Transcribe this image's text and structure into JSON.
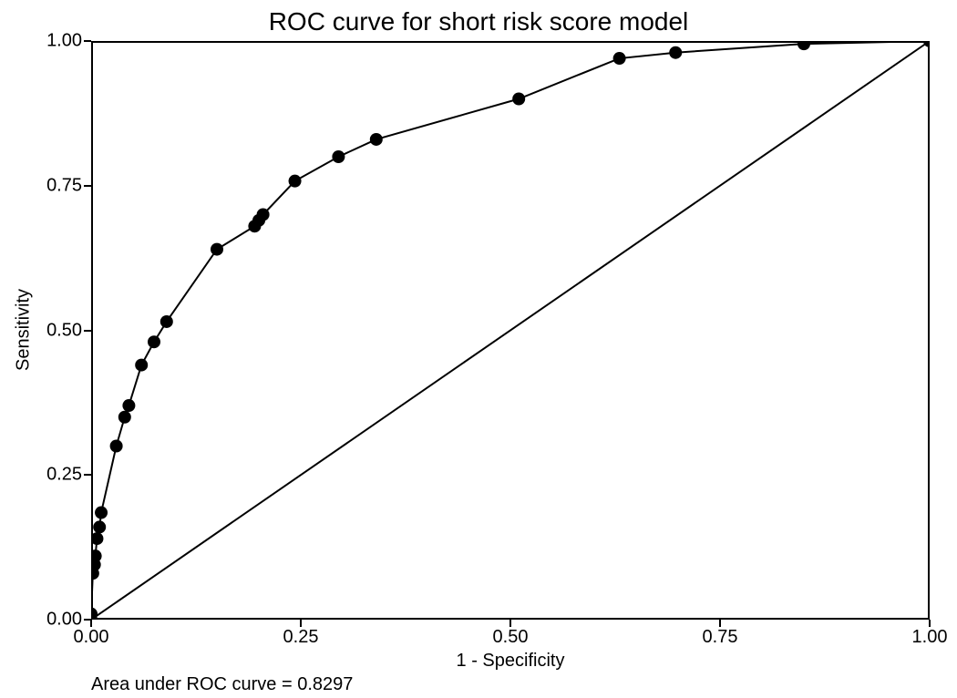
{
  "chart": {
    "type": "line",
    "title": "ROC curve for short risk score model",
    "xlabel": "1 - Specificity",
    "ylabel": "Sensitivity",
    "caption": "Area under ROC curve = 0.8297",
    "xlim": [
      0.0,
      1.0
    ],
    "ylim": [
      0.0,
      1.0
    ],
    "xticks": [
      0.0,
      0.25,
      0.5,
      0.75,
      1.0
    ],
    "yticks": [
      0.0,
      0.25,
      0.5,
      0.75,
      1.0
    ],
    "xtick_labels": [
      "0.00",
      "0.25",
      "0.50",
      "0.75",
      "1.00"
    ],
    "ytick_labels": [
      "0.00",
      "0.25",
      "0.50",
      "0.75",
      "1.00"
    ],
    "tick_length": 8,
    "axis_line_width": 2,
    "background_color": "#ffffff",
    "border_color": "#000000",
    "line_color": "#000000",
    "line_width": 2,
    "marker_color": "#000000",
    "marker_radius": 7,
    "reference_line_color": "#000000",
    "reference_line_width": 2,
    "title_fontsize": 28,
    "label_fontsize": 20,
    "tick_fontsize": 20,
    "roc_points": [
      {
        "x": 0.0,
        "y": 0.0
      },
      {
        "x": 0.0,
        "y": 0.01
      },
      {
        "x": 0.002,
        "y": 0.08
      },
      {
        "x": 0.004,
        "y": 0.095
      },
      {
        "x": 0.005,
        "y": 0.11
      },
      {
        "x": 0.007,
        "y": 0.14
      },
      {
        "x": 0.01,
        "y": 0.16
      },
      {
        "x": 0.012,
        "y": 0.185
      },
      {
        "x": 0.03,
        "y": 0.3
      },
      {
        "x": 0.04,
        "y": 0.35
      },
      {
        "x": 0.045,
        "y": 0.37
      },
      {
        "x": 0.06,
        "y": 0.44
      },
      {
        "x": 0.075,
        "y": 0.48
      },
      {
        "x": 0.09,
        "y": 0.515
      },
      {
        "x": 0.15,
        "y": 0.64
      },
      {
        "x": 0.195,
        "y": 0.68
      },
      {
        "x": 0.2,
        "y": 0.69
      },
      {
        "x": 0.205,
        "y": 0.7
      },
      {
        "x": 0.243,
        "y": 0.758
      },
      {
        "x": 0.295,
        "y": 0.8
      },
      {
        "x": 0.34,
        "y": 0.83
      },
      {
        "x": 0.51,
        "y": 0.9
      },
      {
        "x": 0.63,
        "y": 0.97
      },
      {
        "x": 0.697,
        "y": 0.98
      },
      {
        "x": 0.85,
        "y": 0.995
      },
      {
        "x": 1.0,
        "y": 1.0
      }
    ],
    "reference_line": [
      {
        "x": 0.0,
        "y": 0.0
      },
      {
        "x": 1.0,
        "y": 1.0
      }
    ]
  }
}
